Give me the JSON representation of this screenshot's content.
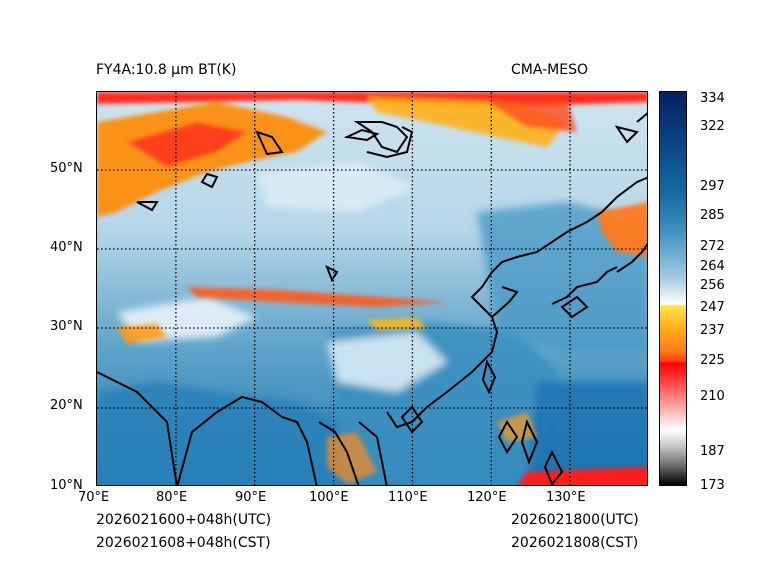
{
  "header": {
    "product": "FY4A:10.8 μm BT(K)",
    "model": "CMA-MESO"
  },
  "footer": {
    "init_utc": "2026021600+048h(UTC)",
    "init_cst": "2026021608+048h(CST)",
    "valid_utc": "2026021800(UTC)",
    "valid_cst": "2026021808(CST)"
  },
  "map": {
    "lon_labels": [
      "70°E",
      "80°E",
      "90°E",
      "100°E",
      "110°E",
      "120°E",
      "130°E"
    ],
    "lat_labels": [
      "50°N",
      "40°N",
      "30°N",
      "20°N",
      "10°N"
    ],
    "lon_range": [
      70,
      140
    ],
    "lat_range": [
      10,
      60
    ]
  },
  "colorbar": {
    "labels": [
      "334",
      "322",
      "297",
      "285",
      "272",
      "264",
      "256",
      "247",
      "237",
      "225",
      "210",
      "187",
      "173"
    ],
    "range": [
      173,
      338
    ],
    "colors": {
      "cold": "#2b0000",
      "red": "#ff0000",
      "orange": "#ff8a00",
      "yellow": "#ffd21a",
      "white": "#ffffff",
      "lightblue": "#bcdcec",
      "blue": "#1f78b4",
      "navy": "#08205a",
      "gray": "#6e6e6e"
    }
  }
}
